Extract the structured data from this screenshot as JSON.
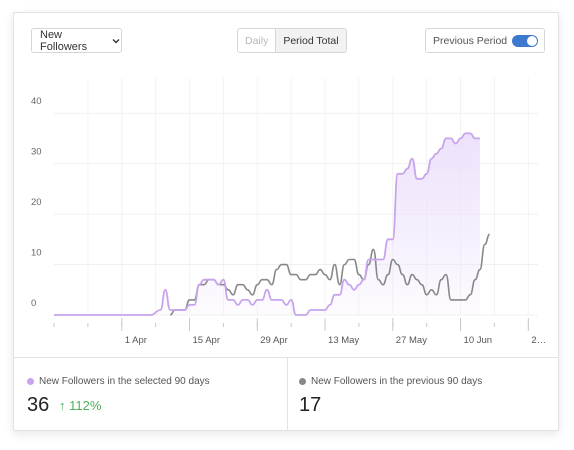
{
  "controls": {
    "metric_label": "New Followers",
    "toggle_daily": "Daily",
    "toggle_total": "Period Total",
    "previous_period_label": "Previous Period",
    "previous_period_on": true
  },
  "chart_data": {
    "type": "area",
    "title": "",
    "xlabel": "",
    "ylabel": "",
    "ylim": [
      0,
      45
    ],
    "yticks": [
      0,
      10,
      20,
      30,
      40
    ],
    "x_tick_labels": [
      "1 Apr",
      "15 Apr",
      "29 Apr",
      "13 May",
      "27 May",
      "10 Jun",
      "2…"
    ],
    "x_tick_day": [
      14,
      28,
      42,
      56,
      70,
      84,
      98
    ],
    "grid": true,
    "colors": {
      "current": "#c8a4ec",
      "previous": "#888888",
      "area_top": "#ece0fb"
    },
    "series": [
      {
        "name": "New Followers in the selected 90 days",
        "color": "#c8a4ec",
        "filled": true,
        "points": [
          [
            0,
            0
          ],
          [
            20,
            0
          ],
          [
            22,
            1
          ],
          [
            23,
            5
          ],
          [
            24,
            1
          ],
          [
            27,
            1
          ],
          [
            28,
            2
          ],
          [
            29,
            2
          ],
          [
            30,
            6
          ],
          [
            31,
            7
          ],
          [
            33,
            7
          ],
          [
            34,
            6
          ],
          [
            35,
            7
          ],
          [
            36,
            3
          ],
          [
            37,
            3
          ],
          [
            38,
            2
          ],
          [
            39,
            3
          ],
          [
            40,
            3
          ],
          [
            41,
            2
          ],
          [
            42,
            3
          ],
          [
            43,
            3
          ],
          [
            44,
            5
          ],
          [
            45,
            3
          ],
          [
            47,
            3
          ],
          [
            48,
            2
          ],
          [
            49,
            3
          ],
          [
            50,
            0
          ],
          [
            51,
            0
          ],
          [
            52,
            0
          ],
          [
            53,
            1
          ],
          [
            55,
            1
          ],
          [
            56,
            1
          ],
          [
            57,
            2
          ],
          [
            58,
            4
          ],
          [
            59,
            4
          ],
          [
            60,
            7
          ],
          [
            61,
            6
          ],
          [
            62,
            5
          ],
          [
            63,
            6
          ],
          [
            64,
            7
          ],
          [
            65,
            11
          ],
          [
            66,
            11
          ],
          [
            68,
            11
          ],
          [
            69,
            15
          ],
          [
            70,
            15
          ],
          [
            71,
            28
          ],
          [
            72,
            28
          ],
          [
            73,
            29
          ],
          [
            74,
            31
          ],
          [
            75,
            27
          ],
          [
            76,
            27
          ],
          [
            77,
            28
          ],
          [
            78,
            31
          ],
          [
            79,
            32
          ],
          [
            80,
            33
          ],
          [
            81,
            35
          ],
          [
            82,
            35
          ],
          [
            83,
            34
          ],
          [
            84,
            35
          ],
          [
            85,
            36
          ],
          [
            86,
            36
          ],
          [
            87,
            35
          ],
          [
            88,
            35
          ]
        ]
      },
      {
        "name": "New Followers in the previous 90 days",
        "color": "#888888",
        "filled": false,
        "points": [
          [
            24,
            0
          ],
          [
            25,
            1
          ],
          [
            27,
            1
          ],
          [
            28,
            3
          ],
          [
            29,
            3
          ],
          [
            30,
            6
          ],
          [
            31,
            6
          ],
          [
            32,
            7
          ],
          [
            33,
            7
          ],
          [
            34,
            6
          ],
          [
            35,
            6
          ],
          [
            36,
            5
          ],
          [
            37,
            4
          ],
          [
            38,
            6
          ],
          [
            39,
            6
          ],
          [
            40,
            5
          ],
          [
            41,
            4
          ],
          [
            42,
            6
          ],
          [
            43,
            7
          ],
          [
            44,
            7
          ],
          [
            45,
            6
          ],
          [
            46,
            9
          ],
          [
            47,
            10
          ],
          [
            48,
            10
          ],
          [
            49,
            8
          ],
          [
            50,
            8
          ],
          [
            51,
            7
          ],
          [
            52,
            7
          ],
          [
            53,
            8
          ],
          [
            54,
            8
          ],
          [
            55,
            9
          ],
          [
            56,
            8
          ],
          [
            57,
            7
          ],
          [
            58,
            10
          ],
          [
            59,
            6
          ],
          [
            60,
            10
          ],
          [
            61,
            11
          ],
          [
            62,
            11
          ],
          [
            63,
            8
          ],
          [
            64,
            7
          ],
          [
            65,
            10
          ],
          [
            66,
            13
          ],
          [
            67,
            7
          ],
          [
            68,
            6
          ],
          [
            69,
            8
          ],
          [
            70,
            11
          ],
          [
            71,
            10
          ],
          [
            72,
            8
          ],
          [
            73,
            6
          ],
          [
            74,
            8
          ],
          [
            75,
            7
          ],
          [
            76,
            6
          ],
          [
            77,
            4
          ],
          [
            78,
            5
          ],
          [
            79,
            4
          ],
          [
            80,
            7
          ],
          [
            81,
            8
          ],
          [
            82,
            3
          ],
          [
            83,
            3
          ],
          [
            84,
            3
          ],
          [
            85,
            3
          ],
          [
            86,
            4
          ],
          [
            87,
            7
          ],
          [
            88,
            9
          ],
          [
            89,
            14
          ],
          [
            90,
            16
          ]
        ]
      }
    ]
  },
  "summary": {
    "current_label": "New Followers in the selected 90 days",
    "current_value": "36",
    "current_change": "↑ 112%",
    "previous_label": "New Followers in the previous 90 days",
    "previous_value": "17"
  }
}
